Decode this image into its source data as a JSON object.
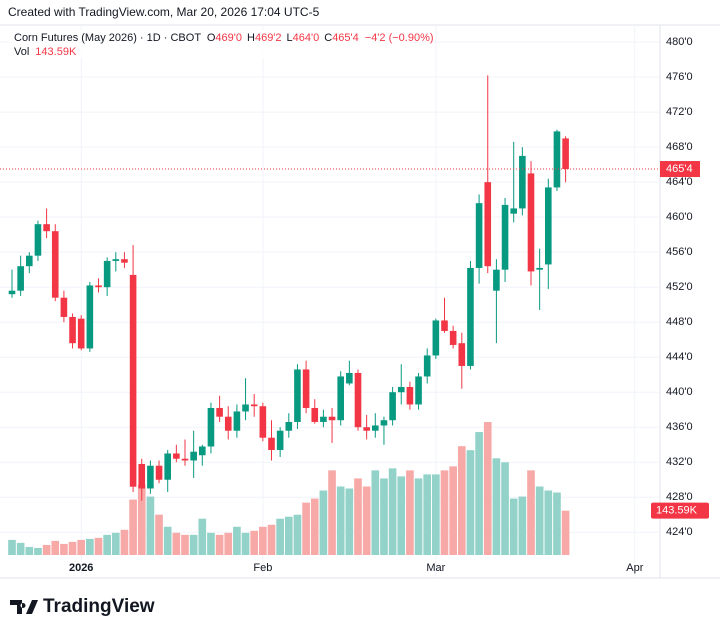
{
  "header": "Created with TradingView.com, Mar 20, 2026 17:04 UTC-5",
  "brand": "TradingView",
  "chart_data": {
    "type": "candlestick",
    "title": "Corn Futures (May 2026) · 1D · CBOT",
    "legend": {
      "open_key": "O",
      "open": "469'0",
      "high_key": "H",
      "high": "469'2",
      "low_key": "L",
      "low": "464'0",
      "close_key": "C",
      "close": "465'4",
      "change": "−4'2 (−0.90%)",
      "volume_key": "Vol",
      "volume": "143.59K"
    },
    "last_price_label": "465'4",
    "last_volume_label": "143.59K",
    "categories": [
      null,
      null,
      null,
      null,
      null,
      null,
      null,
      null,
      "2026",
      null,
      null,
      null,
      null,
      null,
      null,
      null,
      null,
      null,
      null,
      null,
      null,
      null,
      null,
      null,
      null,
      null,
      null,
      null,
      null,
      "Feb",
      null,
      null,
      null,
      null,
      null,
      null,
      null,
      null,
      null,
      null,
      null,
      null,
      null,
      null,
      null,
      null,
      null,
      null,
      null,
      "Mar",
      null,
      null,
      null,
      null,
      null,
      null,
      null,
      null,
      null,
      null,
      null,
      null,
      null,
      null,
      null,
      null,
      null,
      null,
      null,
      null,
      null,
      null,
      "Apr"
    ],
    "open": [
      451.2,
      451.6,
      454.4,
      455.6,
      459.2,
      458.4,
      450.8,
      448.6,
      448.4,
      445.0,
      452.2,
      452.0,
      455.0,
      455.2,
      453.4,
      431.8,
      429.0,
      431.6,
      430.0,
      433.0,
      432.4,
      432.2,
      432.8,
      433.8,
      438.2,
      437.2,
      435.6,
      437.8,
      438.6,
      438.4,
      434.8,
      433.4,
      435.6,
      436.6,
      442.6,
      438.2,
      436.6,
      437.2,
      436.8,
      441.0,
      442.2,
      436.0,
      435.6,
      436.2,
      436.8,
      440.0,
      440.6,
      438.6,
      441.8,
      444.2,
      448.2,
      447.0,
      445.6,
      443.0,
      454.2,
      464.0,
      451.6,
      454.0,
      460.4,
      461.0,
      465.0,
      454.0,
      454.6,
      463.4,
      469.0,
      null,
      null,
      null,
      null,
      null,
      null,
      null,
      null
    ],
    "high": [
      454.0,
      455.6,
      456.0,
      459.6,
      461.0,
      459.2,
      451.6,
      449.0,
      448.8,
      452.6,
      453.0,
      455.4,
      456.0,
      456.0,
      456.8,
      432.4,
      432.2,
      432.2,
      433.4,
      434.0,
      434.6,
      435.6,
      434.0,
      438.8,
      439.6,
      438.4,
      438.6,
      441.6,
      439.8,
      438.8,
      436.8,
      436.0,
      437.6,
      443.2,
      443.6,
      439.2,
      438.0,
      438.2,
      442.4,
      443.6,
      442.6,
      437.4,
      437.6,
      437.2,
      440.6,
      443.2,
      441.2,
      442.2,
      445.0,
      448.4,
      450.8,
      447.6,
      446.8,
      455.0,
      462.6,
      476.2,
      455.2,
      462.2,
      468.6,
      468.0,
      466.4,
      456.4,
      464.4,
      470.0,
      469.25,
      null,
      null,
      null,
      null,
      null,
      null,
      null,
      null
    ],
    "low": [
      450.8,
      451.0,
      453.6,
      455.0,
      457.6,
      450.4,
      448.0,
      445.0,
      444.8,
      444.6,
      451.4,
      451.0,
      453.8,
      454.2,
      428.6,
      427.6,
      428.4,
      429.6,
      428.6,
      432.0,
      431.6,
      430.2,
      431.6,
      433.0,
      436.6,
      434.6,
      434.8,
      436.8,
      437.2,
      434.4,
      432.2,
      432.6,
      434.8,
      435.8,
      437.6,
      436.4,
      436.0,
      434.2,
      436.2,
      440.8,
      435.6,
      434.6,
      434.8,
      434.0,
      436.2,
      438.6,
      438.0,
      438.0,
      441.0,
      443.8,
      446.8,
      445.0,
      440.4,
      442.6,
      452.4,
      453.6,
      445.6,
      452.6,
      459.4,
      460.2,
      452.2,
      449.4,
      451.8,
      463.0,
      464.0,
      null,
      null,
      null,
      null,
      null,
      null,
      null,
      null
    ],
    "close": [
      451.6,
      454.4,
      455.6,
      459.2,
      458.4,
      450.8,
      448.6,
      445.6,
      445.0,
      452.2,
      452.0,
      455.0,
      455.2,
      454.8,
      429.2,
      429.0,
      431.6,
      430.0,
      433.0,
      432.4,
      432.2,
      433.2,
      433.8,
      438.2,
      437.2,
      435.6,
      437.8,
      438.6,
      438.4,
      434.8,
      433.4,
      435.6,
      436.6,
      442.6,
      438.2,
      436.6,
      437.2,
      436.8,
      441.8,
      442.2,
      436.0,
      435.6,
      436.2,
      436.8,
      440.0,
      440.6,
      438.6,
      441.8,
      444.2,
      448.2,
      447.0,
      445.4,
      443.0,
      454.2,
      461.6,
      454.4,
      454.0,
      461.4,
      461.0,
      467.0,
      453.8,
      454.2,
      463.4,
      469.8,
      465.5,
      null,
      null,
      null,
      null,
      null,
      null,
      null,
      null
    ],
    "volume": [
      48900,
      39200,
      26100,
      22800,
      32600,
      45700,
      35900,
      42400,
      48900,
      52200,
      55500,
      65300,
      71800,
      81600,
      179500,
      228400,
      189300,
      130500,
      91400,
      71800,
      65300,
      65300,
      117500,
      71800,
      65300,
      71800,
      91400,
      71800,
      78300,
      91400,
      97900,
      117500,
      124000,
      130500,
      169700,
      182700,
      208800,
      274100,
      221900,
      215400,
      248000,
      221900,
      274100,
      248000,
      280600,
      254500,
      274100,
      248000,
      261000,
      261000,
      274100,
      287100,
      352400,
      339400,
      398100,
      430700,
      313200,
      300200,
      182700,
      189300,
      274100,
      221900,
      208800,
      202300,
      143590,
      null,
      null,
      null,
      null,
      null,
      null,
      null,
      null
    ],
    "up_color": "#089981",
    "down_color": "#f23645",
    "up_volume_color": "#92d2c8",
    "down_volume_color": "#f7a9a7",
    "ylim": [
      421.4,
      483.9
    ],
    "yticks": [
      {
        "value": 424,
        "label": "424'0"
      },
      {
        "value": 428,
        "label": "428'0"
      },
      {
        "value": 432,
        "label": "432'0"
      },
      {
        "value": 436,
        "label": "436'0"
      },
      {
        "value": 440,
        "label": "440'0"
      },
      {
        "value": 444,
        "label": "444'0"
      },
      {
        "value": 448,
        "label": "448'0"
      },
      {
        "value": 452,
        "label": "452'0"
      },
      {
        "value": 456,
        "label": "456'0"
      },
      {
        "value": 460,
        "label": "460'0"
      },
      {
        "value": 464,
        "label": "464'0"
      },
      {
        "value": 468,
        "label": "468'0"
      },
      {
        "value": 472,
        "label": "472'0"
      },
      {
        "value": 476,
        "label": "476'0"
      },
      {
        "value": 480,
        "label": "480'0"
      }
    ],
    "grid": true
  }
}
